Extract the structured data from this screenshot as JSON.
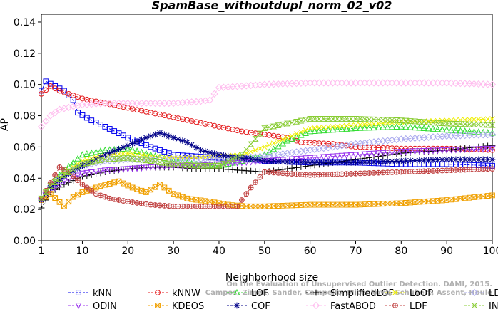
{
  "chart_data": {
    "type": "line",
    "title": "SpamBase_withoutdupl_norm_02_v02",
    "xlabel": "Neighborhood size",
    "ylabel": "AP",
    "xlim": [
      1,
      100
    ],
    "ylim": [
      0.0,
      0.145
    ],
    "x_ticks": [
      1,
      10,
      20,
      30,
      40,
      50,
      60,
      70,
      80,
      90,
      100
    ],
    "y_ticks": [
      "0.00",
      "0.02",
      "0.04",
      "0.06",
      "0.08",
      "0.10",
      "0.12",
      "0.14"
    ],
    "watermark": [
      "Campos, Zimek, Sander, Campello, Micenkova, Schubert, Assent, Houle",
      "On the Evaluation of Unsupervised Outlier Detection. DAMI, 2015."
    ],
    "legend_position": "bottom",
    "series": [
      {
        "name": "kNN",
        "color": "#0000ee",
        "marker": "square",
        "points": [
          [
            1,
            0.096
          ],
          [
            2,
            0.102
          ],
          [
            4,
            0.099
          ],
          [
            6,
            0.096
          ],
          [
            8,
            0.09
          ],
          [
            9,
            0.082
          ],
          [
            12,
            0.077
          ],
          [
            15,
            0.073
          ],
          [
            20,
            0.066
          ],
          [
            25,
            0.06
          ],
          [
            30,
            0.055
          ],
          [
            35,
            0.054
          ],
          [
            40,
            0.053
          ],
          [
            45,
            0.053
          ],
          [
            50,
            0.051
          ],
          [
            60,
            0.05
          ],
          [
            70,
            0.05
          ],
          [
            80,
            0.049
          ],
          [
            90,
            0.049
          ],
          [
            100,
            0.048
          ]
        ]
      },
      {
        "name": "kNNW",
        "color": "#e41a1c",
        "marker": "circle",
        "points": [
          [
            1,
            0.094
          ],
          [
            3,
            0.099
          ],
          [
            5,
            0.096
          ],
          [
            10,
            0.091
          ],
          [
            15,
            0.088
          ],
          [
            20,
            0.085
          ],
          [
            25,
            0.082
          ],
          [
            30,
            0.079
          ],
          [
            35,
            0.076
          ],
          [
            40,
            0.073
          ],
          [
            45,
            0.07
          ],
          [
            50,
            0.068
          ],
          [
            55,
            0.066
          ],
          [
            58,
            0.063
          ],
          [
            65,
            0.062
          ],
          [
            70,
            0.06
          ],
          [
            80,
            0.059
          ],
          [
            90,
            0.059
          ],
          [
            100,
            0.058
          ]
        ]
      },
      {
        "name": "LOF",
        "color": "#33dd33",
        "marker": "triangle",
        "points": [
          [
            1,
            0.027
          ],
          [
            3,
            0.036
          ],
          [
            6,
            0.045
          ],
          [
            10,
            0.055
          ],
          [
            15,
            0.058
          ],
          [
            20,
            0.059
          ],
          [
            25,
            0.055
          ],
          [
            30,
            0.051
          ],
          [
            35,
            0.049
          ],
          [
            40,
            0.048
          ],
          [
            45,
            0.051
          ],
          [
            50,
            0.055
          ],
          [
            55,
            0.064
          ],
          [
            60,
            0.07
          ],
          [
            70,
            0.072
          ],
          [
            80,
            0.073
          ],
          [
            90,
            0.071
          ],
          [
            100,
            0.069
          ]
        ]
      },
      {
        "name": "SimplifiedLOF",
        "color": "#000000",
        "marker": "plus",
        "points": [
          [
            1,
            0.021
          ],
          [
            3,
            0.031
          ],
          [
            6,
            0.036
          ],
          [
            10,
            0.041
          ],
          [
            15,
            0.044
          ],
          [
            20,
            0.046
          ],
          [
            25,
            0.047
          ],
          [
            30,
            0.047
          ],
          [
            35,
            0.046
          ],
          [
            40,
            0.046
          ],
          [
            45,
            0.045
          ],
          [
            50,
            0.044
          ],
          [
            55,
            0.046
          ],
          [
            60,
            0.048
          ],
          [
            70,
            0.052
          ],
          [
            80,
            0.056
          ],
          [
            90,
            0.058
          ],
          [
            100,
            0.061
          ]
        ]
      },
      {
        "name": "LoOP",
        "color": "#eeee00",
        "marker": "x",
        "points": [
          [
            1,
            0.027
          ],
          [
            3,
            0.035
          ],
          [
            6,
            0.043
          ],
          [
            10,
            0.051
          ],
          [
            15,
            0.055
          ],
          [
            20,
            0.056
          ],
          [
            25,
            0.054
          ],
          [
            30,
            0.053
          ],
          [
            35,
            0.053
          ],
          [
            40,
            0.054
          ],
          [
            45,
            0.055
          ],
          [
            50,
            0.06
          ],
          [
            55,
            0.066
          ],
          [
            60,
            0.072
          ],
          [
            70,
            0.074
          ],
          [
            80,
            0.076
          ],
          [
            90,
            0.077
          ],
          [
            100,
            0.078
          ]
        ]
      },
      {
        "name": "LDOF",
        "color": "#aaaaee",
        "marker": "diamond",
        "points": [
          [
            1,
            0.027
          ],
          [
            3,
            0.035
          ],
          [
            6,
            0.042
          ],
          [
            10,
            0.048
          ],
          [
            15,
            0.051
          ],
          [
            20,
            0.052
          ],
          [
            25,
            0.052
          ],
          [
            30,
            0.052
          ],
          [
            35,
            0.052
          ],
          [
            40,
            0.053
          ],
          [
            45,
            0.053
          ],
          [
            50,
            0.054
          ],
          [
            55,
            0.056
          ],
          [
            60,
            0.058
          ],
          [
            70,
            0.062
          ],
          [
            80,
            0.065
          ],
          [
            90,
            0.067
          ],
          [
            100,
            0.068
          ]
        ]
      },
      {
        "name": "ODIN",
        "color": "#9933ee",
        "marker": "triangle-down",
        "points": [
          [
            1,
            0.026
          ],
          [
            3,
            0.032
          ],
          [
            6,
            0.038
          ],
          [
            10,
            0.043
          ],
          [
            15,
            0.045
          ],
          [
            20,
            0.046
          ],
          [
            25,
            0.047
          ],
          [
            30,
            0.048
          ],
          [
            35,
            0.048
          ],
          [
            40,
            0.049
          ],
          [
            45,
            0.05
          ],
          [
            50,
            0.051
          ],
          [
            55,
            0.052
          ],
          [
            60,
            0.053
          ],
          [
            70,
            0.055
          ],
          [
            80,
            0.057
          ],
          [
            90,
            0.058
          ],
          [
            100,
            0.059
          ]
        ]
      },
      {
        "name": "KDEOS",
        "color": "#f0a000",
        "marker": "square-x",
        "points": [
          [
            1,
            0.026
          ],
          [
            3,
            0.03
          ],
          [
            6,
            0.022
          ],
          [
            8,
            0.028
          ],
          [
            10,
            0.031
          ],
          [
            14,
            0.035
          ],
          [
            18,
            0.038
          ],
          [
            21,
            0.034
          ],
          [
            24,
            0.031
          ],
          [
            27,
            0.036
          ],
          [
            30,
            0.03
          ],
          [
            33,
            0.027
          ],
          [
            38,
            0.025
          ],
          [
            42,
            0.023
          ],
          [
            46,
            0.022
          ],
          [
            50,
            0.022
          ],
          [
            60,
            0.023
          ],
          [
            70,
            0.023
          ],
          [
            80,
            0.024
          ],
          [
            90,
            0.026
          ],
          [
            100,
            0.029
          ]
        ]
      },
      {
        "name": "COF",
        "color": "#000088",
        "marker": "star",
        "points": [
          [
            1,
            0.026
          ],
          [
            3,
            0.034
          ],
          [
            6,
            0.041
          ],
          [
            10,
            0.048
          ],
          [
            15,
            0.055
          ],
          [
            20,
            0.061
          ],
          [
            24,
            0.066
          ],
          [
            27,
            0.069
          ],
          [
            30,
            0.066
          ],
          [
            33,
            0.063
          ],
          [
            36,
            0.058
          ],
          [
            40,
            0.055
          ],
          [
            45,
            0.053
          ],
          [
            50,
            0.051
          ],
          [
            60,
            0.05
          ],
          [
            70,
            0.05
          ],
          [
            80,
            0.051
          ],
          [
            90,
            0.052
          ],
          [
            100,
            0.052
          ]
        ]
      },
      {
        "name": "FastABOD",
        "color": "#ffbbee",
        "marker": "diamond",
        "points": [
          [
            1,
            0.073
          ],
          [
            3,
            0.08
          ],
          [
            5,
            0.084
          ],
          [
            8,
            0.086
          ],
          [
            10,
            0.087
          ],
          [
            15,
            0.088
          ],
          [
            20,
            0.088
          ],
          [
            25,
            0.088
          ],
          [
            30,
            0.088
          ],
          [
            35,
            0.089
          ],
          [
            38,
            0.09
          ],
          [
            40,
            0.098
          ],
          [
            45,
            0.099
          ],
          [
            50,
            0.1
          ],
          [
            60,
            0.101
          ],
          [
            70,
            0.101
          ],
          [
            80,
            0.101
          ],
          [
            90,
            0.101
          ],
          [
            100,
            0.1
          ]
        ]
      },
      {
        "name": "LDF",
        "color": "#c04040",
        "marker": "circle-plus",
        "points": [
          [
            1,
            0.027
          ],
          [
            3,
            0.037
          ],
          [
            5,
            0.047
          ],
          [
            7,
            0.044
          ],
          [
            10,
            0.036
          ],
          [
            13,
            0.03
          ],
          [
            16,
            0.027
          ],
          [
            20,
            0.025
          ],
          [
            25,
            0.023
          ],
          [
            30,
            0.022
          ],
          [
            35,
            0.022
          ],
          [
            40,
            0.022
          ],
          [
            44,
            0.022
          ],
          [
            47,
            0.034
          ],
          [
            50,
            0.044
          ],
          [
            55,
            0.043
          ],
          [
            60,
            0.042
          ],
          [
            70,
            0.043
          ],
          [
            80,
            0.044
          ],
          [
            90,
            0.045
          ],
          [
            100,
            0.046
          ]
        ]
      },
      {
        "name": "INFLO",
        "color": "#88cc33",
        "marker": "hourglass",
        "points": [
          [
            1,
            0.027
          ],
          [
            3,
            0.035
          ],
          [
            6,
            0.042
          ],
          [
            10,
            0.049
          ],
          [
            15,
            0.052
          ],
          [
            20,
            0.053
          ],
          [
            25,
            0.051
          ],
          [
            30,
            0.049
          ],
          [
            35,
            0.048
          ],
          [
            40,
            0.048
          ],
          [
            45,
            0.055
          ],
          [
            50,
            0.072
          ],
          [
            55,
            0.075
          ],
          [
            60,
            0.078
          ],
          [
            70,
            0.078
          ],
          [
            80,
            0.077
          ],
          [
            90,
            0.075
          ],
          [
            100,
            0.074
          ]
        ]
      }
    ]
  }
}
